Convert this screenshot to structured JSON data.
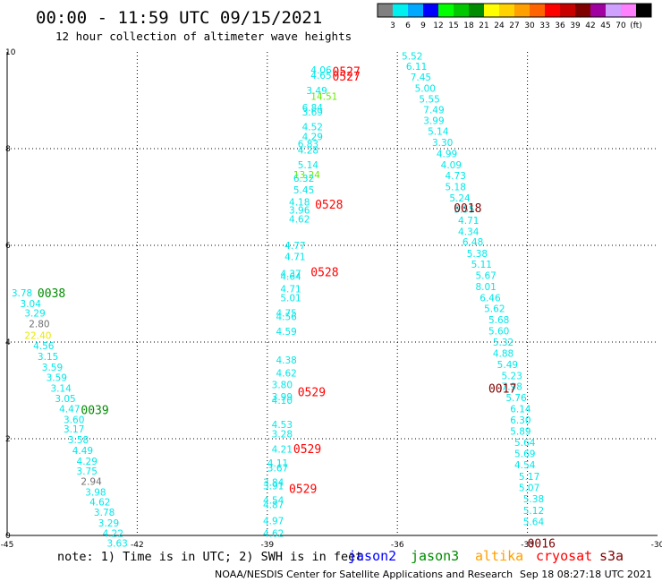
{
  "title": "00:00 - 11:59 UTC 09/15/2021",
  "subtitle": "12 hour collection of altimeter wave heights",
  "colorbar": {
    "colors": [
      "#808080",
      "#00f0f0",
      "#00a8ff",
      "#0000ff",
      "#00ff00",
      "#00c800",
      "#008c00",
      "#ffff00",
      "#ffd200",
      "#ffa000",
      "#ff6400",
      "#ff0000",
      "#c80000",
      "#800000",
      "#a000a0",
      "#d0a0ff",
      "#ff80ff",
      "#000000"
    ],
    "labels": [
      "3",
      "6",
      "9",
      "12",
      "15",
      "18",
      "21",
      "24",
      "27",
      "30",
      "33",
      "36",
      "39",
      "42",
      "45",
      "70",
      "(ft)"
    ]
  },
  "footnote": "note: 1) Time is in UTC; 2) SWH is in feet",
  "legend": [
    {
      "name": "jason2",
      "color": "#0000ff"
    },
    {
      "name": "jason3",
      "color": "#008c00"
    },
    {
      "name": "altika",
      "color": "#ffa000"
    },
    {
      "name": "cryosat",
      "color": "#ff0000"
    },
    {
      "name": "s3a",
      "color": "#800000"
    }
  ],
  "credit": "NOAA/NESDIS Center for Satellite Applications and Research",
  "timestamp": "Sep 18 08:27:18 UTC 2021",
  "chart_data": {
    "type": "scatter",
    "xlim": [
      -45,
      -30
    ],
    "ylim": [
      0,
      10
    ],
    "xticks": [
      -45,
      -42,
      -39,
      -36,
      -33,
      -30
    ],
    "yticks": [
      0,
      2,
      4,
      6,
      8,
      10
    ],
    "grid": true,
    "colors": {
      "cyan": "#00e8e8",
      "lime": "#66ee00",
      "yellow": "#e8e800",
      "gray": "#707070"
    },
    "points": [
      {
        "x": -38.0,
        "y": 9.63,
        "label": "4.06",
        "color": "cyan"
      },
      {
        "x": -38.0,
        "y": 9.52,
        "label": "4.65",
        "color": "cyan"
      },
      {
        "x": -38.1,
        "y": 9.2,
        "label": "3.49",
        "color": "cyan"
      },
      {
        "x": -38.0,
        "y": 9.08,
        "label": "14.51",
        "color": "lime"
      },
      {
        "x": -38.2,
        "y": 8.85,
        "label": "6.84",
        "color": "cyan"
      },
      {
        "x": -38.2,
        "y": 8.76,
        "label": "3.69",
        "color": "cyan"
      },
      {
        "x": -38.2,
        "y": 8.45,
        "label": "4.52",
        "color": "cyan"
      },
      {
        "x": -38.2,
        "y": 8.25,
        "label": "4.29",
        "color": "cyan"
      },
      {
        "x": -38.3,
        "y": 8.1,
        "label": "6.83",
        "color": "cyan"
      },
      {
        "x": -38.3,
        "y": 7.97,
        "label": "4.28",
        "color": "cyan"
      },
      {
        "x": -38.3,
        "y": 7.67,
        "label": "5.14",
        "color": "cyan"
      },
      {
        "x": -38.4,
        "y": 7.46,
        "label": "13.24",
        "color": "lime"
      },
      {
        "x": -38.4,
        "y": 7.39,
        "label": "6.32",
        "color": "cyan"
      },
      {
        "x": -38.4,
        "y": 7.15,
        "label": "5.45",
        "color": "cyan"
      },
      {
        "x": -38.5,
        "y": 6.9,
        "label": "4.18",
        "color": "cyan"
      },
      {
        "x": -38.5,
        "y": 6.73,
        "label": "3.96",
        "color": "cyan"
      },
      {
        "x": -38.5,
        "y": 6.55,
        "label": "4.62",
        "color": "cyan"
      },
      {
        "x": -38.6,
        "y": 6.0,
        "label": "4.77",
        "color": "cyan"
      },
      {
        "x": -38.6,
        "y": 5.77,
        "label": "4.71",
        "color": "cyan"
      },
      {
        "x": -38.7,
        "y": 5.42,
        "label": "4.37",
        "color": "cyan"
      },
      {
        "x": -38.7,
        "y": 5.36,
        "label": "4.64",
        "color": "cyan"
      },
      {
        "x": -38.7,
        "y": 5.1,
        "label": "4.71",
        "color": "cyan"
      },
      {
        "x": -38.7,
        "y": 4.92,
        "label": "5.01",
        "color": "cyan"
      },
      {
        "x": -38.8,
        "y": 4.6,
        "label": "4.75",
        "color": "cyan"
      },
      {
        "x": -38.8,
        "y": 4.53,
        "label": "4.56",
        "color": "cyan"
      },
      {
        "x": -38.8,
        "y": 4.22,
        "label": "4.59",
        "color": "cyan"
      },
      {
        "x": -38.8,
        "y": 3.63,
        "label": "4.38",
        "color": "cyan"
      },
      {
        "x": -38.8,
        "y": 3.36,
        "label": "4.62",
        "color": "cyan"
      },
      {
        "x": -38.9,
        "y": 3.12,
        "label": "3.80",
        "color": "cyan"
      },
      {
        "x": -38.9,
        "y": 2.87,
        "label": "3.99",
        "color": "cyan"
      },
      {
        "x": -38.9,
        "y": 2.8,
        "label": "4.10",
        "color": "cyan"
      },
      {
        "x": -38.9,
        "y": 2.3,
        "label": "4.53",
        "color": "cyan"
      },
      {
        "x": -38.9,
        "y": 2.1,
        "label": "3.28",
        "color": "cyan"
      },
      {
        "x": -38.9,
        "y": 1.79,
        "label": "4.21",
        "color": "cyan"
      },
      {
        "x": -39.0,
        "y": 1.5,
        "label": "4.11",
        "color": "cyan"
      },
      {
        "x": -39.0,
        "y": 1.4,
        "label": "3.67",
        "color": "cyan"
      },
      {
        "x": -39.1,
        "y": 1.1,
        "label": "3.84",
        "color": "cyan"
      },
      {
        "x": -39.1,
        "y": 1.03,
        "label": "3.91",
        "color": "cyan"
      },
      {
        "x": -39.1,
        "y": 0.73,
        "label": "4.54",
        "color": "cyan"
      },
      {
        "x": -39.1,
        "y": 0.64,
        "label": "4.87",
        "color": "cyan"
      },
      {
        "x": -39.1,
        "y": 0.31,
        "label": "4.97",
        "color": "cyan"
      },
      {
        "x": -39.1,
        "y": 0.05,
        "label": "4.62",
        "color": "cyan"
      },
      {
        "x": -35.9,
        "y": 9.92,
        "label": "5.52",
        "color": "cyan"
      },
      {
        "x": -35.8,
        "y": 9.7,
        "label": "6.11",
        "color": "cyan"
      },
      {
        "x": -35.7,
        "y": 9.48,
        "label": "7.45",
        "color": "cyan"
      },
      {
        "x": -35.6,
        "y": 9.25,
        "label": "5.00",
        "color": "cyan"
      },
      {
        "x": -35.5,
        "y": 9.03,
        "label": "5.55",
        "color": "cyan"
      },
      {
        "x": -35.4,
        "y": 8.81,
        "label": "7.49",
        "color": "cyan"
      },
      {
        "x": -35.4,
        "y": 8.58,
        "label": "3.99",
        "color": "cyan"
      },
      {
        "x": -35.3,
        "y": 8.36,
        "label": "5.14",
        "color": "cyan"
      },
      {
        "x": -35.2,
        "y": 8.13,
        "label": "3.30",
        "color": "cyan"
      },
      {
        "x": -35.1,
        "y": 7.9,
        "label": "4.99",
        "color": "cyan"
      },
      {
        "x": -35.0,
        "y": 7.67,
        "label": "4.09",
        "color": "cyan"
      },
      {
        "x": -34.9,
        "y": 7.44,
        "label": "4.73",
        "color": "cyan"
      },
      {
        "x": -34.9,
        "y": 7.21,
        "label": "5.18",
        "color": "cyan"
      },
      {
        "x": -34.8,
        "y": 6.98,
        "label": "5.24",
        "color": "cyan"
      },
      {
        "x": -34.7,
        "y": 6.75,
        "label": "5.55",
        "color": "cyan"
      },
      {
        "x": -34.6,
        "y": 6.52,
        "label": "4.71",
        "color": "cyan"
      },
      {
        "x": -34.6,
        "y": 6.29,
        "label": "4.34",
        "color": "cyan"
      },
      {
        "x": -34.5,
        "y": 6.07,
        "label": "6.48",
        "color": "cyan"
      },
      {
        "x": -34.4,
        "y": 5.83,
        "label": "5.38",
        "color": "cyan"
      },
      {
        "x": -34.3,
        "y": 5.61,
        "label": "5.11",
        "color": "cyan"
      },
      {
        "x": -34.2,
        "y": 5.38,
        "label": "5.67",
        "color": "cyan"
      },
      {
        "x": -34.2,
        "y": 5.15,
        "label": "8.01",
        "color": "cyan"
      },
      {
        "x": -34.1,
        "y": 4.92,
        "label": "6.46",
        "color": "cyan"
      },
      {
        "x": -34.0,
        "y": 4.69,
        "label": "5.62",
        "color": "cyan"
      },
      {
        "x": -33.9,
        "y": 4.46,
        "label": "5.68",
        "color": "cyan"
      },
      {
        "x": -33.9,
        "y": 4.23,
        "label": "5.60",
        "color": "cyan"
      },
      {
        "x": -33.8,
        "y": 4.0,
        "label": "5.32",
        "color": "cyan"
      },
      {
        "x": -33.8,
        "y": 3.77,
        "label": "4.88",
        "color": "cyan"
      },
      {
        "x": -33.7,
        "y": 3.54,
        "label": "5.49",
        "color": "cyan"
      },
      {
        "x": -33.6,
        "y": 3.31,
        "label": "5.23",
        "color": "cyan"
      },
      {
        "x": -33.6,
        "y": 3.08,
        "label": "7.98",
        "color": "cyan"
      },
      {
        "x": -33.5,
        "y": 2.85,
        "label": "5.76",
        "color": "cyan"
      },
      {
        "x": -33.4,
        "y": 2.62,
        "label": "6.14",
        "color": "cyan"
      },
      {
        "x": -33.4,
        "y": 2.39,
        "label": "6.30",
        "color": "cyan"
      },
      {
        "x": -33.4,
        "y": 2.16,
        "label": "5.89",
        "color": "cyan"
      },
      {
        "x": -33.3,
        "y": 1.93,
        "label": "5.64",
        "color": "cyan"
      },
      {
        "x": -33.3,
        "y": 1.69,
        "label": "5.69",
        "color": "cyan"
      },
      {
        "x": -33.3,
        "y": 1.46,
        "label": "4.54",
        "color": "cyan"
      },
      {
        "x": -33.2,
        "y": 1.22,
        "label": "5.17",
        "color": "cyan"
      },
      {
        "x": -33.2,
        "y": 0.99,
        "label": "5.07",
        "color": "cyan"
      },
      {
        "x": -33.1,
        "y": 0.76,
        "label": "5.38",
        "color": "cyan"
      },
      {
        "x": -33.1,
        "y": 0.52,
        "label": "5.12",
        "color": "cyan"
      },
      {
        "x": -33.1,
        "y": 0.29,
        "label": "5.64",
        "color": "cyan"
      },
      {
        "x": -44.9,
        "y": 5.02,
        "label": "3.78",
        "color": "cyan"
      },
      {
        "x": -44.7,
        "y": 4.8,
        "label": "3.04",
        "color": "cyan"
      },
      {
        "x": -44.6,
        "y": 4.6,
        "label": "3.29",
        "color": "cyan"
      },
      {
        "x": -44.5,
        "y": 4.38,
        "label": "2.80",
        "color": "gray"
      },
      {
        "x": -44.6,
        "y": 4.14,
        "label": "22.40",
        "color": "yellow"
      },
      {
        "x": -44.4,
        "y": 3.93,
        "label": "4.56",
        "color": "cyan"
      },
      {
        "x": -44.3,
        "y": 3.7,
        "label": "3.15",
        "color": "cyan"
      },
      {
        "x": -44.2,
        "y": 3.48,
        "label": "3.59",
        "color": "cyan"
      },
      {
        "x": -44.1,
        "y": 3.27,
        "label": "3.59",
        "color": "cyan"
      },
      {
        "x": -44.0,
        "y": 3.05,
        "label": "3.14",
        "color": "cyan"
      },
      {
        "x": -43.9,
        "y": 2.83,
        "label": "3.05",
        "color": "cyan"
      },
      {
        "x": -43.8,
        "y": 2.62,
        "label": "4.47",
        "color": "cyan"
      },
      {
        "x": -43.7,
        "y": 2.4,
        "label": "3.60",
        "color": "cyan"
      },
      {
        "x": -43.7,
        "y": 2.2,
        "label": "3.17",
        "color": "cyan"
      },
      {
        "x": -43.6,
        "y": 1.98,
        "label": "3.58",
        "color": "cyan"
      },
      {
        "x": -43.5,
        "y": 1.76,
        "label": "4.49",
        "color": "cyan"
      },
      {
        "x": -43.4,
        "y": 1.54,
        "label": "4.29",
        "color": "cyan"
      },
      {
        "x": -43.4,
        "y": 1.33,
        "label": "3.75",
        "color": "cyan"
      },
      {
        "x": -43.3,
        "y": 1.12,
        "label": "2.94",
        "color": "gray"
      },
      {
        "x": -43.2,
        "y": 0.9,
        "label": "3.98",
        "color": "cyan"
      },
      {
        "x": -43.1,
        "y": 0.69,
        "label": "4.62",
        "color": "cyan"
      },
      {
        "x": -43.0,
        "y": 0.48,
        "label": "3.78",
        "color": "cyan"
      },
      {
        "x": -42.9,
        "y": 0.26,
        "label": "3.29",
        "color": "cyan"
      },
      {
        "x": -42.8,
        "y": 0.05,
        "label": "4.22",
        "color": "cyan"
      },
      {
        "x": -42.7,
        "y": -0.16,
        "label": "3.63",
        "color": "cyan"
      }
    ],
    "time_labels": [
      {
        "x": -37.5,
        "y": 9.6,
        "label": "0527",
        "color": "#ff0000"
      },
      {
        "x": -37.5,
        "y": 9.5,
        "label": "0527",
        "color": "#ff0000"
      },
      {
        "x": -37.9,
        "y": 6.85,
        "label": "0528",
        "color": "#ff0000"
      },
      {
        "x": -38.0,
        "y": 5.45,
        "label": "0528",
        "color": "#ff0000"
      },
      {
        "x": -38.3,
        "y": 2.97,
        "label": "0529",
        "color": "#ff0000"
      },
      {
        "x": -38.4,
        "y": 1.8,
        "label": "0529",
        "color": "#ff0000"
      },
      {
        "x": -38.5,
        "y": 0.97,
        "label": "0529",
        "color": "#ff0000"
      },
      {
        "x": -34.7,
        "y": 6.78,
        "label": "0018",
        "color": "#800000"
      },
      {
        "x": -33.9,
        "y": 3.05,
        "label": "0017",
        "color": "#800000"
      },
      {
        "x": -33.0,
        "y": -0.16,
        "label": "0016",
        "color": "#800000"
      },
      {
        "x": -44.3,
        "y": 5.02,
        "label": "0038",
        "color": "#008c00"
      },
      {
        "x": -43.3,
        "y": 2.6,
        "label": "0039",
        "color": "#008c00"
      }
    ]
  }
}
